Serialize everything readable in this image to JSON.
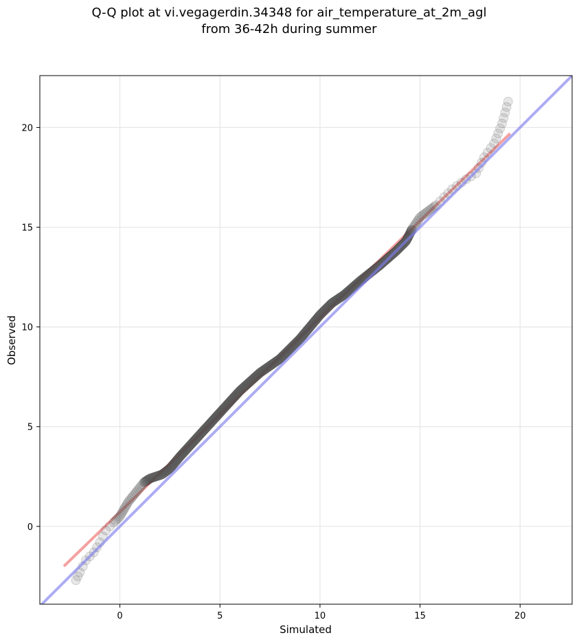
{
  "chart_data": {
    "type": "scatter",
    "title": "Q-Q plot at vi.vegagerdin.34348 for air_temperature_at_2m_agl",
    "subtitle": "from 36-42h during summer",
    "xlabel": "Simulated",
    "ylabel": "Observed",
    "xlim": [
      -4.0,
      22.6
    ],
    "ylim": [
      -3.9,
      22.6
    ],
    "x_ticks": [
      0,
      5,
      10,
      15,
      20
    ],
    "y_ticks": [
      0,
      5,
      10,
      15,
      20
    ],
    "grid": true,
    "colors": {
      "points_fill": "#555555",
      "points_edge": "#333333",
      "points_dense_core": "#1a1a2a",
      "fit_line": "#f08080",
      "identity_line": "#8080ee",
      "grid": "#e6e6e6",
      "axes": "#000000"
    },
    "reference_lines": {
      "identity": {
        "slope": 1.0,
        "intercept": 0.0
      },
      "fit": {
        "x_start": -2.8,
        "y_start": -2.0,
        "x_end": 19.5,
        "y_end": 19.7
      }
    },
    "quantile_curve": {
      "x": [
        -2.2,
        -2.0,
        -1.7,
        -1.3,
        -1.0,
        -0.7,
        -0.3,
        0.0,
        0.4,
        0.8,
        1.2,
        1.5,
        1.8,
        2.1,
        2.5,
        3.0,
        4.0,
        5.0,
        6.0,
        7.0,
        8.0,
        9.0,
        10.0,
        10.6,
        11.2,
        12.0,
        13.0,
        13.8,
        14.3,
        14.6,
        15.0,
        15.8,
        16.6,
        17.3,
        17.8,
        18.2,
        18.7,
        19.1,
        19.4
      ],
      "y": [
        -2.7,
        -2.3,
        -1.7,
        -1.3,
        -0.8,
        -0.2,
        0.2,
        0.5,
        1.2,
        1.7,
        2.2,
        2.4,
        2.5,
        2.6,
        2.9,
        3.5,
        4.6,
        5.7,
        6.8,
        7.7,
        8.4,
        9.4,
        10.6,
        11.2,
        11.6,
        12.3,
        13.1,
        13.8,
        14.3,
        14.9,
        15.5,
        16.1,
        16.9,
        17.4,
        17.7,
        18.5,
        19.2,
        20.2,
        21.3
      ]
    }
  }
}
